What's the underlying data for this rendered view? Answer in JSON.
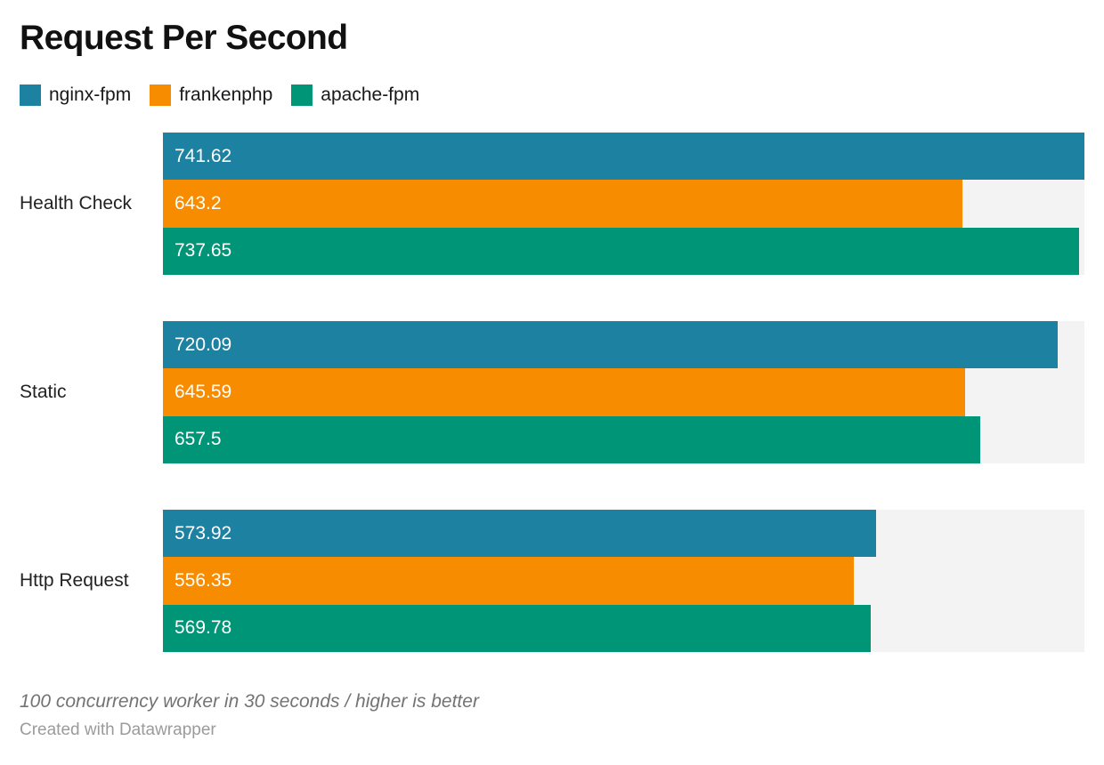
{
  "title": "Request Per Second",
  "legend": {
    "items": [
      {
        "label": "nginx-fpm",
        "color": "#1d81a2"
      },
      {
        "label": "frankenphp",
        "color": "#f88c00"
      },
      {
        "label": "apache-fpm",
        "color": "#009577"
      }
    ]
  },
  "chart_data": {
    "type": "bar",
    "orientation": "horizontal",
    "title": "Request Per Second",
    "categories": [
      "Health Check",
      "Static",
      "Http Request"
    ],
    "series": [
      {
        "name": "nginx-fpm",
        "color": "#1d81a2",
        "values": [
          741.62,
          720.09,
          573.92
        ]
      },
      {
        "name": "frankenphp",
        "color": "#f88c00",
        "values": [
          643.2,
          645.59,
          556.35
        ]
      },
      {
        "name": "apache-fpm",
        "color": "#009577",
        "values": [
          737.65,
          657.5,
          569.78
        ]
      }
    ],
    "xlim": [
      0,
      741.62
    ],
    "grid": false,
    "legend_position": "top",
    "value_labels": "inside-start",
    "track_color": "#f3f3f3"
  },
  "footer": {
    "note": "100 concurrency worker in 30 seconds / higher is better",
    "credit": "Created with Datawrapper"
  }
}
